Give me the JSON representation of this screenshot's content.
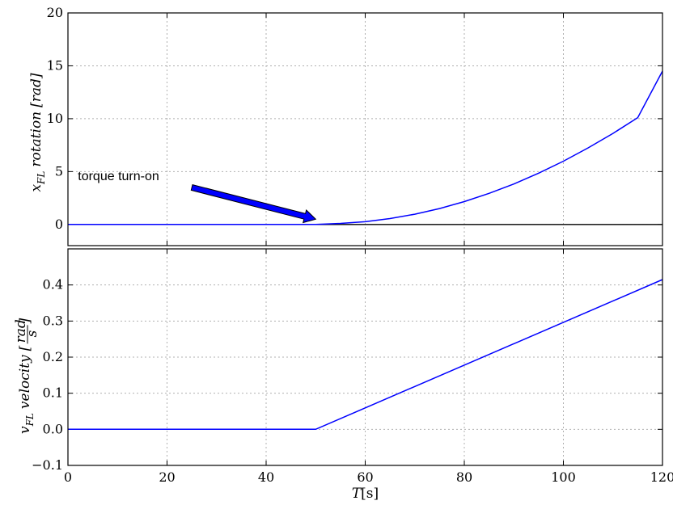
{
  "chart_data": [
    {
      "type": "line",
      "title": "",
      "ylabel": "x_FL rotation [rad]",
      "ylabel_parts": {
        "var": "x",
        "sub": "FL",
        "word": "rotation",
        "unit": "[rad]"
      },
      "xlim": [
        0,
        120
      ],
      "ylim": [
        -2,
        20
      ],
      "yticks": [
        0,
        5,
        10,
        15,
        20
      ],
      "xticks": [
        0,
        20,
        40,
        60,
        80,
        100,
        120
      ],
      "grid": true,
      "series": [
        {
          "color": "#0000ff",
          "x": [
            0,
            10,
            20,
            30,
            40,
            50,
            55,
            60,
            65,
            70,
            75,
            80,
            85,
            90,
            95,
            100,
            105,
            110,
            115,
            120
          ],
          "y": [
            0,
            0,
            0,
            0,
            0,
            0,
            0.1,
            0.26,
            0.56,
            0.97,
            1.51,
            2.16,
            2.94,
            3.83,
            4.85,
            5.98,
            7.24,
            8.61,
            10.1,
            14.5
          ]
        }
      ],
      "reference_line": {
        "y": 0,
        "color": "#000000"
      },
      "annotation": {
        "text": "torque turn-on",
        "arrow_tail": [
          25,
          3.5
        ],
        "arrow_head": [
          50,
          0.5
        ],
        "arrow_color": "#0000ff"
      }
    },
    {
      "type": "line",
      "title": "",
      "xlabel": "T[s]",
      "xlabel_parts": {
        "var": "T",
        "unit": "[s]"
      },
      "ylabel": "v_FL velocity [rad/s]",
      "ylabel_parts": {
        "var": "v",
        "sub": "FL",
        "word": "velocity",
        "num": "rad",
        "den": "s"
      },
      "xlim": [
        0,
        120
      ],
      "ylim": [
        -0.1,
        0.5
      ],
      "yticks": [
        -0.1,
        0.0,
        0.1,
        0.2,
        0.3,
        0.4
      ],
      "ytick_labels": [
        "−0.1",
        "0.0",
        "0.1",
        "0.2",
        "0.3",
        "0.4"
      ],
      "xticks": [
        0,
        20,
        40,
        60,
        80,
        100,
        120
      ],
      "xtick_labels": [
        "0",
        "20",
        "40",
        "60",
        "80",
        "100",
        "120"
      ],
      "grid": true,
      "series": [
        {
          "color": "#0000ff",
          "x": [
            0,
            50,
            120
          ],
          "y": [
            0,
            0,
            0.415
          ]
        }
      ]
    }
  ]
}
